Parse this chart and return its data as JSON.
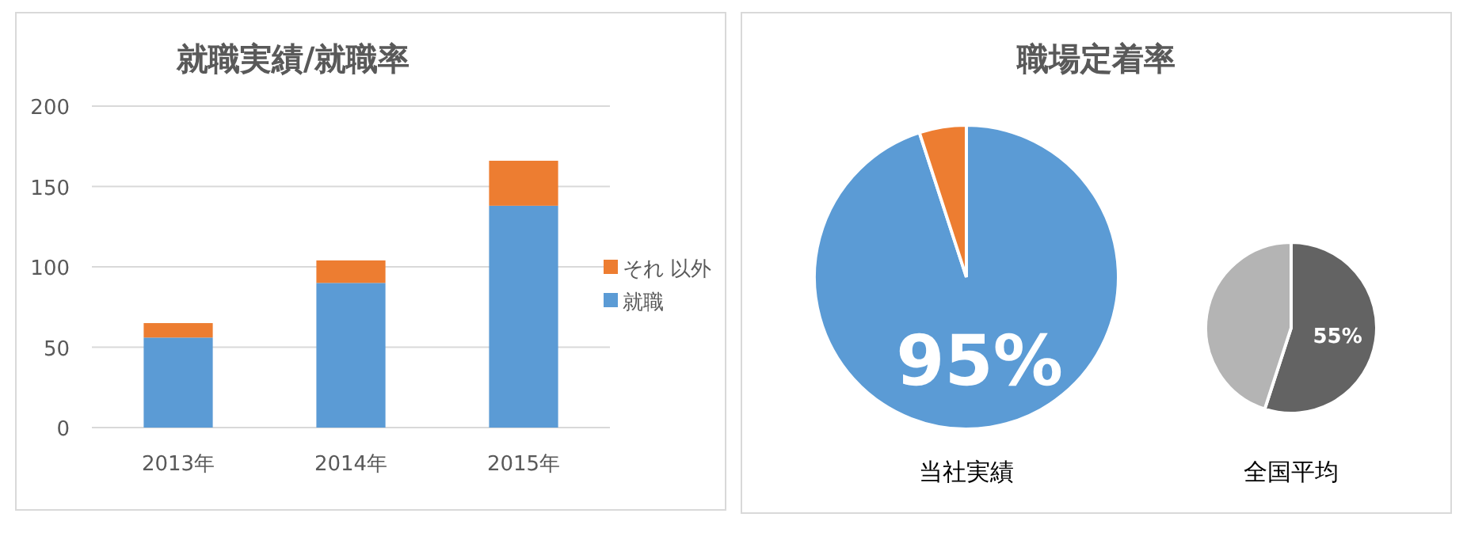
{
  "chart_data": [
    {
      "type": "bar",
      "title": "就職実績/就職率",
      "categories": [
        "2013年",
        "2014年",
        "2015年"
      ],
      "stacked": true,
      "ylim": [
        0,
        200
      ],
      "yticks": [
        0,
        50,
        100,
        150,
        200
      ],
      "grid": "y",
      "legend": "right",
      "series": [
        {
          "name": "就職",
          "color": "#5b9bd5",
          "values": [
            56,
            90,
            138
          ]
        },
        {
          "name": "それ 以外",
          "color": "#ed7d31",
          "values": [
            9,
            14,
            28
          ]
        }
      ]
    },
    {
      "type": "pie",
      "title": "職場定着率",
      "xlabel": "当社実績",
      "categories": [
        null,
        null
      ],
      "values": [
        95,
        5
      ],
      "colors": [
        "#5b9bd5",
        "#ed7d31"
      ],
      "value_labels": [
        "95%",
        null
      ]
    },
    {
      "type": "pie",
      "xlabel": "全国平均",
      "categories": [
        null,
        null
      ],
      "values": [
        55,
        45
      ],
      "colors": [
        "#636363",
        "#b4b4b4"
      ],
      "value_labels": [
        "55%",
        null
      ]
    }
  ]
}
